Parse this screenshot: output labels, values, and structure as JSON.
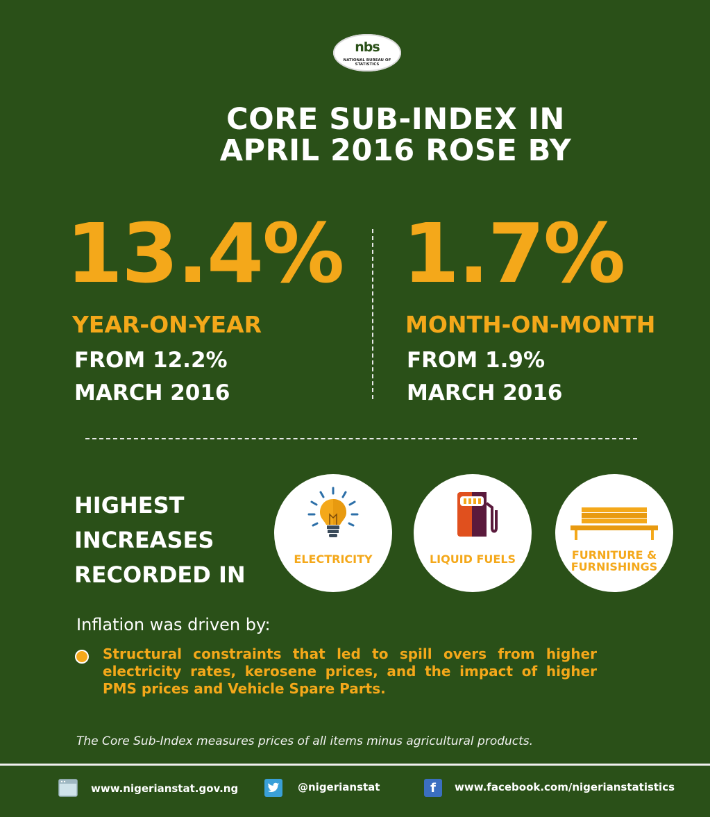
{
  "logo": {
    "mark": "nbs",
    "subtitle": "NATIONAL BUREAU OF STATISTICS"
  },
  "title": {
    "line1": "CORE SUB-INDEX IN",
    "line2": "APRIL 2016 ROSE BY"
  },
  "yoy": {
    "value": "13.4%",
    "label": "YEAR-ON-YEAR",
    "from": "FROM 12.2%",
    "period": "MARCH 2016"
  },
  "mom": {
    "value": "1.7%",
    "label": "MONTH-ON-MONTH",
    "from": "FROM 1.9%",
    "period": "MARCH 2016"
  },
  "highest": {
    "line1": "HIGHEST",
    "line2": "INCREASES",
    "line3": "RECORDED IN"
  },
  "categories": [
    {
      "icon": "lightbulb-icon",
      "label": "ELECTRICITY"
    },
    {
      "icon": "fuel-pump-icon",
      "label": "LIQUID FUELS"
    },
    {
      "icon": "bench-icon",
      "label_line1": "FURNITURE &",
      "label_line2": "FURNISHINGS"
    }
  ],
  "drivers": {
    "heading": "Inflation was driven by:",
    "bullet": "Structural constraints that led to spill overs from higher electricity rates, kerosene prices, and the impact of higher PMS prices and Vehicle Spare Parts."
  },
  "footnote": "The Core Sub-Index measures prices of all items minus agricultural products.",
  "footer": {
    "website": "www.nigerianstat.gov.ng",
    "twitter": "@nigerianstat",
    "facebook": "www.facebook.com/nigerianstatistics"
  },
  "colors": {
    "background": "#2a5018",
    "accent": "#f4a81a",
    "text": "#ffffff"
  }
}
